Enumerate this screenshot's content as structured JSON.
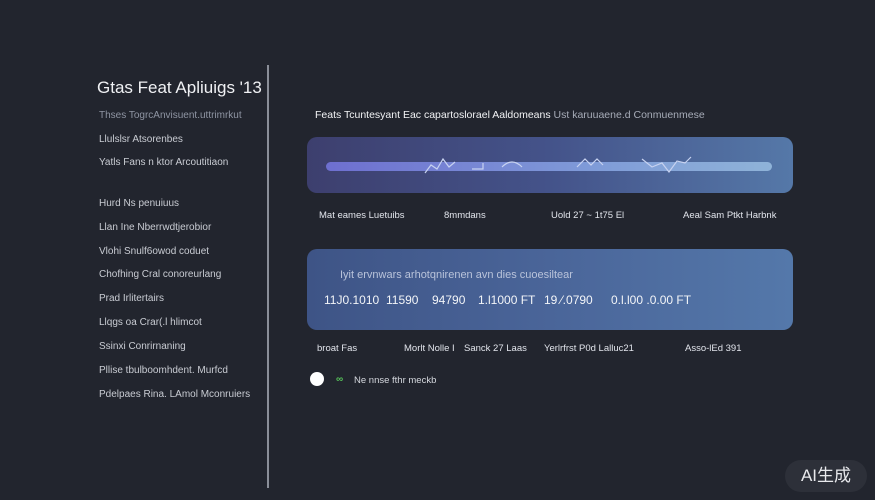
{
  "sidebar": {
    "title": "Gtas Feat Apliuigs '13",
    "items": [
      "Thses TogrcAnvisuent.uttrimrkut",
      "Llulslsr Atsorenbes",
      "Yatls Fans n ktor Arcoutitiaon",
      "Hurd Ns penuiuus",
      "Llan Ine Nberrwdtjerobior",
      "Vlohi Snulf6owod coduet",
      "Chofhing Cral conoreurlang",
      "Prad Irlitertairs",
      "Llqgs oa Crar(.l hlimcot",
      "Ssinxi Conrirnaning",
      "Pllise tbulboomhdent. Murfcd",
      "Pdelpaes Rina. LAmol Mconruiers"
    ]
  },
  "main": {
    "heading": "Feats Tcuntesyant Eac capartoslorael Aaldomeans",
    "heading_suffix": "Ust karuuaene.d Conmuenmese",
    "panel1_labels": [
      "Mat eames Luetuibs",
      "8mmdans",
      "Uold 27 ~ 1t75 El",
      "Aeal Sam  Ptkt  Harbnk"
    ],
    "panel2_subtitle": "Iyit ervnwars arhotqnirenen avn dies cuoesiltear",
    "panel2_values": [
      "11J0.1010",
      "11590",
      "94790",
      "1.l1000 FT",
      "19 ⁄.0790",
      "0.l.l00 .0.00  FT"
    ],
    "panel2_labels": [
      "broat Fas",
      "Morlt Nolle I",
      "Sanck 27 Laas",
      "Yerlrfrst  P0d Lalluc21",
      "Asso-lEd 391"
    ],
    "status_text": "Ne nnse fthr meckb",
    "status_icon": "link-check-icon",
    "accent": "#56c25a",
    "toggle_state": "on"
  },
  "watermark": "AI生成"
}
